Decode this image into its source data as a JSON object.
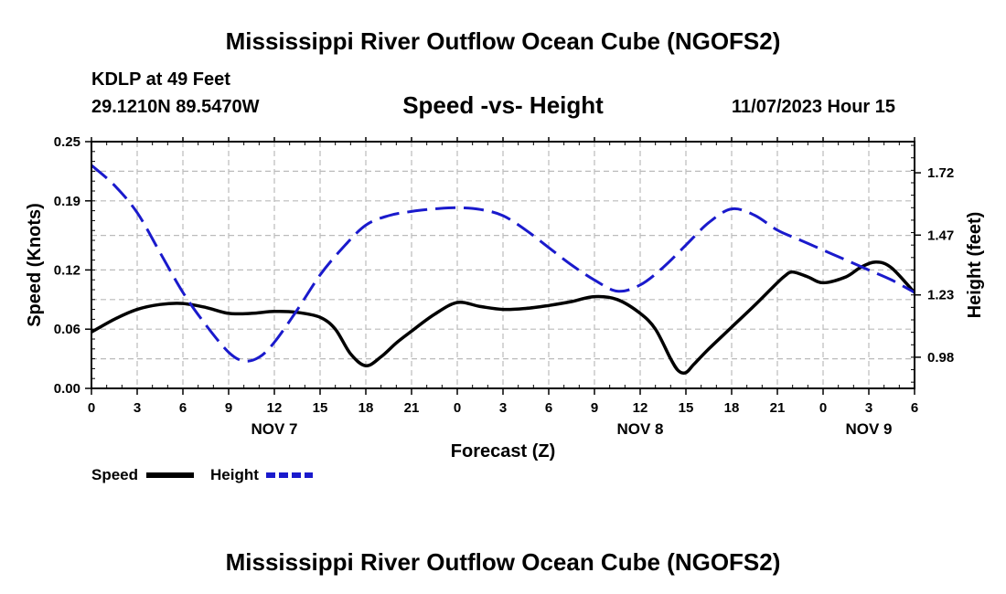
{
  "header": {
    "title": "Mississippi River Outflow Ocean Cube (NGOFS2)",
    "station": "KDLP at 49 Feet",
    "coords": "29.1210N  89.5470W",
    "subtitle": "Speed -vs- Height",
    "datetime": "11/07/2023 Hour 15"
  },
  "footer": {
    "title": "Mississippi River Outflow Ocean Cube (NGOFS2)"
  },
  "legend": {
    "speed_label": "Speed",
    "height_label": "Height"
  },
  "colors": {
    "speed": "#000000",
    "height": "#1a1acc",
    "grid": "#bbbbbb"
  },
  "chart_data": {
    "type": "line",
    "title": "Speed -vs- Height",
    "xlabel": "Forecast (Z)",
    "ylabel": "Speed (Knots)",
    "y2label": "Height (feet)",
    "x_tick_labels": [
      "0",
      "3",
      "6",
      "9",
      "12",
      "15",
      "18",
      "21",
      "0",
      "3",
      "6",
      "9",
      "12",
      "15",
      "18",
      "21",
      "0",
      "3",
      "6"
    ],
    "date_labels": [
      {
        "label": "NOV 7",
        "hour": 12
      },
      {
        "label": "NOV 8",
        "hour": 36
      },
      {
        "label": "NOV 9",
        "hour": 51
      }
    ],
    "xlim": [
      0,
      54
    ],
    "ylim": [
      0,
      0.25
    ],
    "y_ticks": [
      0.0,
      0.06,
      0.12,
      0.19,
      0.25
    ],
    "y_tick_labels": [
      "0.00",
      "0.06",
      "0.12",
      "0.19",
      "0.25"
    ],
    "y2lim": [
      0.855,
      1.845
    ],
    "y2_ticks": [
      0.98,
      1.23,
      1.47,
      1.72
    ],
    "y2_tick_labels": [
      "0.98",
      "1.23",
      "1.47",
      "1.72"
    ],
    "series": [
      {
        "name": "Speed",
        "axis": "left",
        "style": "solid",
        "x": [
          0,
          1.5,
          3,
          4.5,
          6,
          7.5,
          9,
          10.5,
          12,
          13.5,
          15,
          16,
          17,
          18,
          19,
          20,
          21,
          22.5,
          24,
          25.5,
          27,
          28.5,
          30,
          31.5,
          33,
          34.5,
          36,
          37,
          38,
          38.5,
          39,
          39.5,
          40.5,
          42,
          43.5,
          45,
          45.5,
          46,
          47,
          48,
          49.5,
          50.5,
          51.5,
          52.5,
          54
        ],
        "values": [
          0.057,
          0.07,
          0.08,
          0.085,
          0.086,
          0.082,
          0.076,
          0.076,
          0.078,
          0.077,
          0.072,
          0.06,
          0.035,
          0.023,
          0.032,
          0.046,
          0.058,
          0.075,
          0.087,
          0.083,
          0.08,
          0.081,
          0.084,
          0.088,
          0.093,
          0.09,
          0.076,
          0.06,
          0.03,
          0.018,
          0.016,
          0.024,
          0.04,
          0.062,
          0.084,
          0.107,
          0.114,
          0.118,
          0.113,
          0.107,
          0.113,
          0.123,
          0.128,
          0.122,
          0.097
        ]
      },
      {
        "name": "Height",
        "axis": "right",
        "style": "dashed",
        "x": [
          0,
          1.5,
          3,
          4.5,
          6,
          7.5,
          9,
          10,
          11,
          12,
          13.5,
          15,
          16.5,
          18,
          19.5,
          21,
          22.5,
          24,
          25.5,
          27,
          28.5,
          30,
          31.5,
          33,
          34.5,
          36,
          37.5,
          39,
          40.5,
          42,
          43.5,
          45,
          46.5,
          48,
          49.5,
          51,
          52.5,
          54
        ],
        "values": [
          1.75,
          1.67,
          1.56,
          1.4,
          1.24,
          1.11,
          1.0,
          0.965,
          0.98,
          1.04,
          1.17,
          1.31,
          1.42,
          1.51,
          1.548,
          1.565,
          1.575,
          1.58,
          1.573,
          1.548,
          1.49,
          1.42,
          1.35,
          1.29,
          1.245,
          1.27,
          1.34,
          1.43,
          1.52,
          1.575,
          1.55,
          1.49,
          1.45,
          1.41,
          1.37,
          1.33,
          1.29,
          1.24
        ]
      }
    ]
  }
}
